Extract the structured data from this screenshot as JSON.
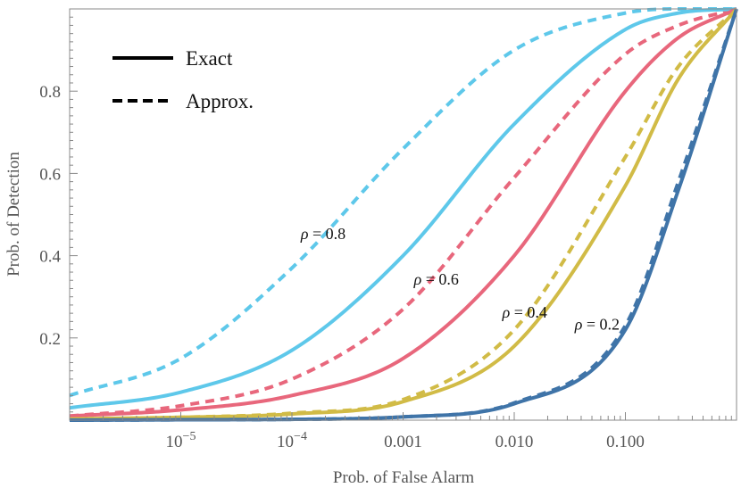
{
  "chart_data": {
    "type": "line",
    "title": "",
    "xlabel": "Prob. of False Alarm",
    "ylabel": "Prob. of Detection",
    "xscale": "log",
    "xlim": [
      1e-06,
      1
    ],
    "ylim": [
      0,
      1
    ],
    "xticks": [
      {
        "value": 1e-05,
        "base": "10",
        "exp": "−5"
      },
      {
        "value": 0.0001,
        "base": "10",
        "exp": "−4"
      },
      {
        "value": 0.001,
        "label": "0.001"
      },
      {
        "value": 0.01,
        "label": "0.010"
      },
      {
        "value": 0.1,
        "label": "0.100"
      }
    ],
    "yticks": [
      {
        "value": 0.2,
        "label": "0.2"
      },
      {
        "value": 0.4,
        "label": "0.4"
      },
      {
        "value": 0.6,
        "label": "0.6"
      },
      {
        "value": 0.8,
        "label": "0.8"
      }
    ],
    "legend": {
      "position": "top-left",
      "entries": [
        {
          "label": "Exact",
          "style": "solid"
        },
        {
          "label": "Approx.",
          "style": "dashed"
        }
      ]
    },
    "x": [
      1e-06,
      1e-05,
      0.0001,
      0.001,
      0.01,
      0.1,
      0.3,
      1
    ],
    "series": [
      {
        "name": "ρ = 0.8 Exact",
        "rho": 0.8,
        "style": "solid",
        "color": "#5ec8ea",
        "values": [
          0.03,
          0.068,
          0.17,
          0.4,
          0.72,
          0.95,
          0.99,
          1.0
        ]
      },
      {
        "name": "ρ = 0.8 Approx.",
        "rho": 0.8,
        "style": "dashed",
        "color": "#5ec8ea",
        "values": [
          0.06,
          0.15,
          0.37,
          0.66,
          0.9,
          0.99,
          1.0,
          1.0
        ]
      },
      {
        "name": "ρ = 0.6 Exact",
        "rho": 0.6,
        "style": "solid",
        "color": "#e8677c",
        "values": [
          0.01,
          0.025,
          0.06,
          0.15,
          0.4,
          0.8,
          0.93,
          1.0
        ]
      },
      {
        "name": "ρ = 0.6 Approx.",
        "rho": 0.6,
        "style": "dashed",
        "color": "#e8677c",
        "values": [
          0.01,
          0.035,
          0.1,
          0.27,
          0.59,
          0.89,
          0.96,
          1.0
        ]
      },
      {
        "name": "ρ = 0.4 Exact",
        "rho": 0.4,
        "style": "solid",
        "color": "#d1bb46",
        "values": [
          0.003,
          0.007,
          0.015,
          0.045,
          0.18,
          0.57,
          0.83,
          1.0
        ]
      },
      {
        "name": "ρ = 0.4 Approx.",
        "rho": 0.4,
        "style": "dashed",
        "color": "#d1bb46",
        "values": [
          0.003,
          0.007,
          0.017,
          0.05,
          0.22,
          0.64,
          0.86,
          1.0
        ]
      },
      {
        "name": "ρ = 0.2 Exact",
        "rho": 0.2,
        "style": "solid",
        "color": "#3f74a8",
        "values": [
          0.0,
          0.001,
          0.002,
          0.008,
          0.04,
          0.22,
          0.56,
          1.0
        ]
      },
      {
        "name": "ρ = 0.2 Approx.",
        "rho": 0.2,
        "style": "dashed",
        "color": "#3f74a8",
        "values": [
          0.0,
          0.001,
          0.002,
          0.008,
          0.042,
          0.23,
          0.58,
          1.0
        ]
      }
    ],
    "annotations": [
      {
        "greek": "ρ",
        "text": " = 0.8",
        "x": 0.00012,
        "y": 0.44
      },
      {
        "greek": "ρ",
        "text": " = 0.6",
        "x": 0.00125,
        "y": 0.33
      },
      {
        "greek": "ρ",
        "text": " = 0.4",
        "x": 0.0078,
        "y": 0.25
      },
      {
        "greek": "ρ",
        "text": " = 0.2",
        "x": 0.035,
        "y": 0.22
      }
    ]
  }
}
